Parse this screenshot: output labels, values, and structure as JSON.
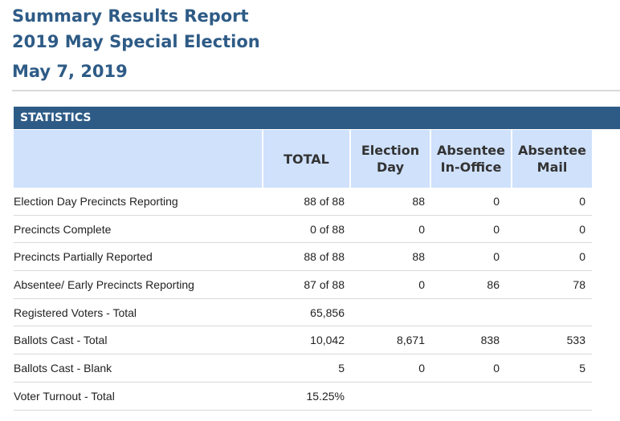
{
  "report": {
    "title": "Summary Results Report",
    "subtitle": "2019 May Special Election",
    "date": "May 7, 2019"
  },
  "statistics": {
    "section_label": "STATISTICS",
    "columns": [
      "",
      "TOTAL",
      "Election\nDay",
      "Absentee\nIn-Office",
      "Absentee\nMail"
    ],
    "rows": [
      {
        "label": "Election Day Precincts Reporting",
        "total": "88 of 88",
        "election_day": "88",
        "absentee_in_office": "0",
        "absentee_mail": "0"
      },
      {
        "label": "Precincts Complete",
        "total": "0 of 88",
        "election_day": "0",
        "absentee_in_office": "0",
        "absentee_mail": "0"
      },
      {
        "label": "Precincts Partially Reported",
        "total": "88 of 88",
        "election_day": "88",
        "absentee_in_office": "0",
        "absentee_mail": "0"
      },
      {
        "label": "Absentee/ Early Precincts Reporting",
        "total": "87 of 88",
        "election_day": "0",
        "absentee_in_office": "86",
        "absentee_mail": "78"
      },
      {
        "label": "Registered Voters - Total",
        "total": "65,856",
        "election_day": "",
        "absentee_in_office": "",
        "absentee_mail": ""
      },
      {
        "label": "Ballots Cast - Total",
        "total": "10,042",
        "election_day": "8,671",
        "absentee_in_office": "838",
        "absentee_mail": "533"
      },
      {
        "label": "Ballots Cast - Blank",
        "total": "5",
        "election_day": "0",
        "absentee_in_office": "0",
        "absentee_mail": "5"
      },
      {
        "label": "Voter Turnout - Total",
        "total": "15.25%",
        "election_day": "",
        "absentee_in_office": "",
        "absentee_mail": ""
      }
    ]
  },
  "colors": {
    "heading": "#2e5b86",
    "section_bar": "#2e5b86",
    "header_cell": "#cfe1fb"
  }
}
